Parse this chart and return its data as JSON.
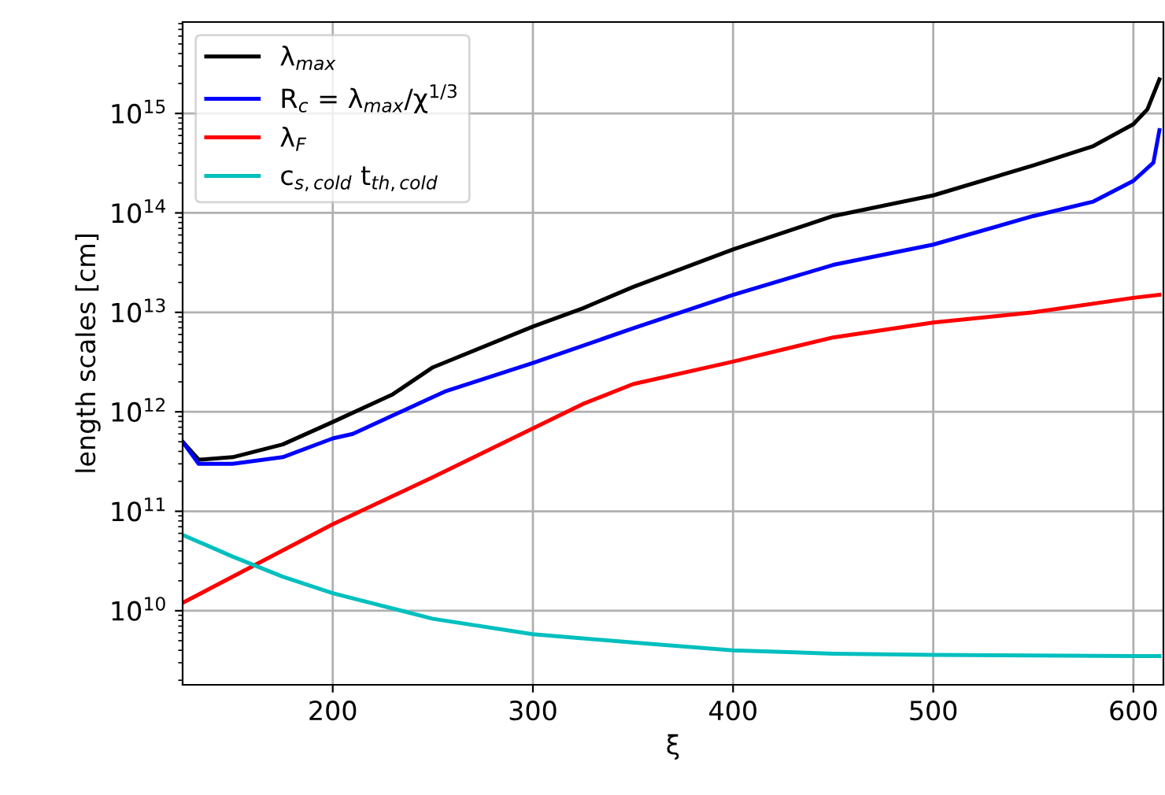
{
  "chart_data": {
    "type": "line",
    "xlabel": "ξ",
    "ylabel": "length scales [cm]",
    "log": "y",
    "grid": true,
    "legend": "top left",
    "line_style": "solid",
    "marker": "none",
    "xlim": [
      125,
      615
    ],
    "xticks": [
      200,
      300,
      400,
      500,
      600
    ],
    "ylim": [
      1800000000.0,
      8300000000000000.0
    ],
    "yticks": [
      {
        "value": 10000000000.0,
        "label": "10$^{10}$"
      },
      {
        "value": 100000000000.0,
        "label": "10$^{11}$"
      },
      {
        "value": 1000000000000.0,
        "label": "10$^{12}$"
      },
      {
        "value": 10000000000000.0,
        "label": "10$^{13}$"
      },
      {
        "value": 100000000000000.0,
        "label": "10$^{14}$"
      },
      {
        "value": 1000000000000000.0,
        "label": "10$^{15}$"
      }
    ],
    "series": [
      {
        "name": "λ$_{max}$",
        "color": "#000000",
        "x": [
          125,
          133,
          150,
          175,
          200,
          230,
          250,
          300,
          325,
          350,
          400,
          450,
          500,
          550,
          580,
          600,
          607,
          613
        ],
        "values": [
          500000000000.0,
          330000000000.0,
          350000000000.0,
          470000000000.0,
          790000000000.0,
          1500000000000.0,
          2800000000000.0,
          7200000000000.0,
          11000000000000.0,
          18000000000000.0,
          43000000000000.0,
          93000000000000.0,
          150000000000000.0,
          300000000000000.0,
          470000000000000.0,
          780000000000000.0,
          1100000000000000.0,
          2200000000000000.0
        ]
      },
      {
        "name": "R$_{c}$ = λ$_{max}$/χ$^{1/3}$",
        "color": "#0000ff",
        "x": [
          125,
          133,
          150,
          175,
          200,
          210,
          256,
          300,
          350,
          400,
          450,
          500,
          550,
          580,
          600,
          610,
          613
        ],
        "values": [
          500000000000.0,
          300000000000.0,
          300000000000.0,
          350000000000.0,
          540000000000.0,
          600000000000.0,
          1600000000000.0,
          3100000000000.0,
          6900000000000.0,
          15000000000000.0,
          30000000000000.0,
          48000000000000.0,
          93000000000000.0,
          130000000000000.0,
          210000000000000.0,
          320000000000000.0,
          680000000000000.0
        ]
      },
      {
        "name": "λ$_{F}$",
        "color": "#ff0000",
        "x": [
          125,
          200,
          250,
          300,
          325,
          350,
          400,
          450,
          500,
          550,
          600,
          613
        ],
        "values": [
          12000000000.0,
          74000000000.0,
          220000000000.0,
          680000000000.0,
          1200000000000.0,
          1900000000000.0,
          3200000000000.0,
          5600000000000.0,
          7900000000000.0,
          10000000000000.0,
          14000000000000.0,
          15000000000000.0
        ]
      },
      {
        "name": "c$_{s,cold}$ t$_{th,cold}$",
        "color": "#00bfbf",
        "x": [
          125,
          150,
          175,
          200,
          250,
          300,
          350,
          400,
          450,
          500,
          600,
          613
        ],
        "values": [
          58000000000.0,
          35000000000.0,
          22000000000.0,
          15000000000.0,
          8300000000.0,
          5800000000.0,
          4800000000.0,
          4000000000.0,
          3700000000.0,
          3600000000.0,
          3500000000.0,
          3500000000.0
        ]
      }
    ]
  }
}
